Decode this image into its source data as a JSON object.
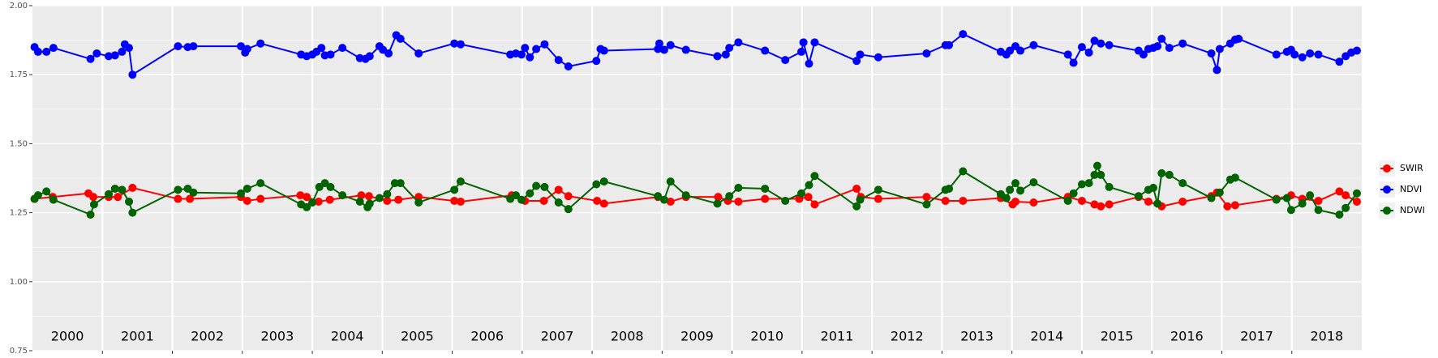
{
  "chart_data": {
    "type": "line",
    "xlim": [
      2000,
      2019
    ],
    "xticks": [
      2001,
      2002,
      2003,
      2004,
      2005,
      2006,
      2007,
      2008,
      2009,
      2010,
      2011,
      2012,
      2013,
      2014,
      2015,
      2016,
      2017,
      2018
    ],
    "year_labels": [
      "2000",
      "2001",
      "2002",
      "2003",
      "2004",
      "2005",
      "2006",
      "2007",
      "2008",
      "2009",
      "2010",
      "2011",
      "2012",
      "2013",
      "2014",
      "2015",
      "2016",
      "2017",
      "2018"
    ],
    "ylim": [
      0.75,
      2.0
    ],
    "yticks": [
      0.75,
      {
        "value": 1.0,
        "label": "1.00"
      },
      1.25,
      {
        "value": 1.5,
        "label": "1.50"
      },
      1.75,
      {
        "value": 2.0,
        "label": "2.00"
      }
    ],
    "grid": true,
    "legend": "right",
    "series": [
      {
        "name": "SWIR",
        "color": "#ff0000",
        "x": [
          2000.03,
          2000.29,
          2000.8,
          2000.87,
          2001.09,
          2001.22,
          2001.43,
          2002.08,
          2002.25,
          2002.98,
          2003.07,
          2003.26,
          2003.83,
          2003.92,
          2004.09,
          2004.25,
          2004.7,
          2004.81,
          2005.07,
          2005.23,
          2005.52,
          2006.03,
          2006.12,
          2006.85,
          2007.04,
          2007.31,
          2007.52,
          2007.66,
          2008.07,
          2008.17,
          2008.94,
          2009.12,
          2009.34,
          2009.8,
          2009.94,
          2010.09,
          2010.47,
          2010.96,
          2011.09,
          2011.18,
          2011.78,
          2011.84,
          2012.09,
          2012.78,
          2013.05,
          2013.3,
          2013.84,
          2014.01,
          2014.05,
          2014.31,
          2014.8,
          2015.0,
          2015.18,
          2015.27,
          2015.39,
          2015.81,
          2015.95,
          2016.14,
          2016.44,
          2016.85,
          2016.93,
          2017.08,
          2017.19,
          2017.78,
          2017.99,
          2018.15,
          2018.38,
          2018.68,
          2018.77,
          2018.93
        ],
        "values": [
          1.3,
          1.307,
          1.32,
          1.307,
          1.307,
          1.307,
          1.34,
          1.3,
          1.3,
          1.307,
          1.293,
          1.3,
          1.313,
          1.307,
          1.29,
          1.297,
          1.313,
          1.31,
          1.293,
          1.297,
          1.307,
          1.293,
          1.29,
          1.313,
          1.293,
          1.293,
          1.333,
          1.31,
          1.293,
          1.283,
          1.307,
          1.29,
          1.307,
          1.307,
          1.293,
          1.29,
          1.3,
          1.3,
          1.307,
          1.28,
          1.337,
          1.307,
          1.3,
          1.307,
          1.293,
          1.293,
          1.303,
          1.28,
          1.29,
          1.287,
          1.307,
          1.293,
          1.28,
          1.273,
          1.28,
          1.307,
          1.29,
          1.273,
          1.29,
          1.31,
          1.323,
          1.273,
          1.277,
          1.3,
          1.313,
          1.3,
          1.293,
          1.327,
          1.313,
          1.29
        ]
      },
      {
        "name": "NDVI",
        "color": "#0000ff",
        "x": [
          2000.03,
          2000.08,
          2000.2,
          2000.3,
          2000.83,
          2000.92,
          2001.09,
          2001.18,
          2001.28,
          2001.32,
          2001.38,
          2001.43,
          2002.08,
          2002.22,
          2002.3,
          2002.98,
          2003.04,
          2003.07,
          2003.26,
          2003.84,
          2003.92,
          2004.0,
          2004.06,
          2004.13,
          2004.18,
          2004.26,
          2004.43,
          2004.68,
          2004.76,
          2004.82,
          2004.96,
          2005.01,
          2005.09,
          2005.2,
          2005.26,
          2005.52,
          2006.03,
          2006.12,
          2006.83,
          2006.91,
          2006.99,
          2007.04,
          2007.11,
          2007.2,
          2007.32,
          2007.52,
          2007.66,
          2008.06,
          2008.12,
          2008.17,
          2008.94,
          2008.96,
          2009.03,
          2009.12,
          2009.34,
          2009.79,
          2009.91,
          2009.96,
          2010.09,
          2010.47,
          2010.76,
          2010.99,
          2011.02,
          2011.1,
          2011.18,
          2011.78,
          2011.83,
          2012.09,
          2012.78,
          2013.05,
          2013.1,
          2013.3,
          2013.84,
          2013.92,
          2013.97,
          2014.05,
          2014.12,
          2014.31,
          2014.8,
          2014.88,
          2015.0,
          2015.1,
          2015.18,
          2015.27,
          2015.39,
          2015.81,
          2015.88,
          2015.95,
          2016.02,
          2016.08,
          2016.14,
          2016.25,
          2016.44,
          2016.85,
          2016.93,
          2016.97,
          2017.12,
          2017.19,
          2017.24,
          2017.78,
          2017.93,
          2017.99,
          2018.04,
          2018.15,
          2018.26,
          2018.38,
          2018.68,
          2018.77,
          2018.85,
          2018.93
        ],
        "values": [
          1.85,
          1.833,
          1.833,
          1.847,
          1.807,
          1.827,
          1.817,
          1.82,
          1.833,
          1.86,
          1.847,
          1.75,
          1.853,
          1.85,
          1.853,
          1.853,
          1.83,
          1.843,
          1.863,
          1.823,
          1.817,
          1.823,
          1.833,
          1.847,
          1.82,
          1.823,
          1.847,
          1.81,
          1.807,
          1.817,
          1.853,
          1.84,
          1.827,
          1.893,
          1.88,
          1.827,
          1.863,
          1.86,
          1.823,
          1.827,
          1.823,
          1.847,
          1.813,
          1.843,
          1.86,
          1.803,
          1.78,
          1.8,
          1.843,
          1.837,
          1.843,
          1.863,
          1.84,
          1.857,
          1.84,
          1.817,
          1.823,
          1.847,
          1.867,
          1.837,
          1.803,
          1.833,
          1.867,
          1.79,
          1.867,
          1.8,
          1.823,
          1.813,
          1.827,
          1.857,
          1.857,
          1.897,
          1.833,
          1.823,
          1.837,
          1.853,
          1.837,
          1.857,
          1.823,
          1.793,
          1.85,
          1.83,
          1.873,
          1.863,
          1.857,
          1.837,
          1.823,
          1.843,
          1.847,
          1.853,
          1.88,
          1.847,
          1.863,
          1.827,
          1.767,
          1.843,
          1.863,
          1.877,
          1.88,
          1.823,
          1.833,
          1.84,
          1.823,
          1.813,
          1.827,
          1.823,
          1.797,
          1.817,
          1.83,
          1.837
        ]
      },
      {
        "name": "NDWI",
        "color": "#006400",
        "x": [
          2000.03,
          2000.08,
          2000.2,
          2000.3,
          2000.83,
          2000.88,
          2001.09,
          2001.18,
          2001.28,
          2001.38,
          2001.43,
          2002.08,
          2002.22,
          2002.3,
          2002.98,
          2003.07,
          2003.26,
          2003.84,
          2003.92,
          2004.0,
          2004.1,
          2004.18,
          2004.26,
          2004.43,
          2004.68,
          2004.79,
          2004.82,
          2004.96,
          2005.07,
          2005.18,
          2005.26,
          2005.52,
          2006.03,
          2006.12,
          2006.83,
          2006.91,
          2006.99,
          2007.11,
          2007.2,
          2007.32,
          2007.52,
          2007.66,
          2008.06,
          2008.17,
          2008.94,
          2009.03,
          2009.12,
          2009.34,
          2009.79,
          2009.96,
          2010.09,
          2010.47,
          2010.76,
          2010.99,
          2011.1,
          2011.18,
          2011.78,
          2011.83,
          2012.09,
          2012.78,
          2013.05,
          2013.1,
          2013.3,
          2013.84,
          2013.92,
          2013.97,
          2014.05,
          2014.12,
          2014.31,
          2014.8,
          2014.88,
          2015.0,
          2015.1,
          2015.18,
          2015.22,
          2015.27,
          2015.39,
          2015.81,
          2015.95,
          2016.02,
          2016.08,
          2016.14,
          2016.25,
          2016.44,
          2016.85,
          2016.97,
          2017.12,
          2017.19,
          2017.78,
          2017.93,
          2017.99,
          2018.15,
          2018.26,
          2018.38,
          2018.68,
          2018.77,
          2018.93
        ],
        "values": [
          1.3,
          1.313,
          1.327,
          1.297,
          1.243,
          1.28,
          1.317,
          1.337,
          1.333,
          1.29,
          1.25,
          1.333,
          1.337,
          1.323,
          1.32,
          1.337,
          1.357,
          1.28,
          1.27,
          1.287,
          1.343,
          1.357,
          1.343,
          1.313,
          1.29,
          1.27,
          1.283,
          1.303,
          1.317,
          1.357,
          1.357,
          1.287,
          1.333,
          1.363,
          1.3,
          1.313,
          1.297,
          1.32,
          1.347,
          1.343,
          1.287,
          1.263,
          1.353,
          1.363,
          1.31,
          1.297,
          1.363,
          1.313,
          1.283,
          1.31,
          1.34,
          1.337,
          1.293,
          1.32,
          1.35,
          1.383,
          1.273,
          1.297,
          1.333,
          1.28,
          1.333,
          1.337,
          1.4,
          1.317,
          1.303,
          1.333,
          1.357,
          1.33,
          1.36,
          1.293,
          1.32,
          1.353,
          1.357,
          1.387,
          1.42,
          1.387,
          1.343,
          1.31,
          1.333,
          1.34,
          1.283,
          1.393,
          1.387,
          1.357,
          1.303,
          1.323,
          1.37,
          1.377,
          1.297,
          1.303,
          1.26,
          1.283,
          1.313,
          1.26,
          1.243,
          1.267,
          1.32
        ]
      }
    ]
  }
}
